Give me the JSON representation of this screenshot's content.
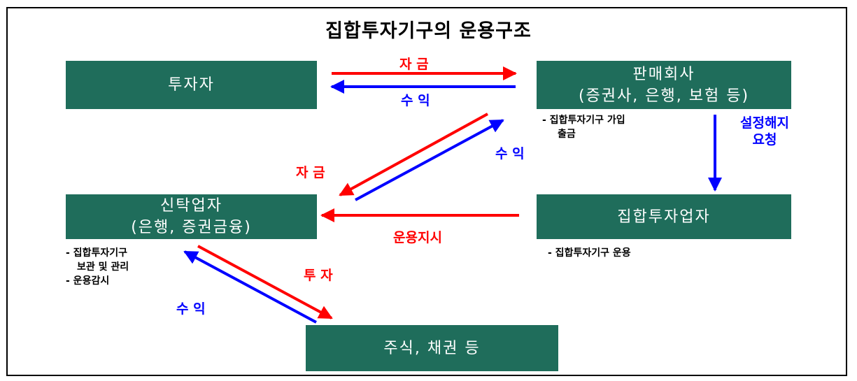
{
  "title": "집합투자기구의 운용구조",
  "boxes": {
    "investor": "투자자",
    "distributor": {
      "line1": "판매회사",
      "line2": "(증권사, 은행, 보험 등)"
    },
    "trustee": {
      "line1": "신탁업자",
      "line2": "(은행, 증권금융)"
    },
    "manager": "집합투자업자",
    "assets": "주식, 채권 등"
  },
  "labels": {
    "funds_top": "자 금",
    "returns_top": "수 익",
    "funds_diag": "자 금",
    "returns_diag": "수 익",
    "instruction": "운용지시",
    "invest": "투 자",
    "returns_bottom": "수 익",
    "setup_request": {
      "line1": "설정해지",
      "line2": "요청"
    }
  },
  "notes": {
    "distributor": {
      "line1": "- 집합투자기구 가입",
      "line2": "출금"
    },
    "trustee": {
      "line1": "- 집합투자기구",
      "line2": "보관 및 관리",
      "line3": "- 운용감시"
    },
    "manager": "- 집합투자기구 운용"
  },
  "colors": {
    "box": "#1f6d5b",
    "red_arrow": "#ff0000",
    "blue_arrow": "#0000ff"
  }
}
